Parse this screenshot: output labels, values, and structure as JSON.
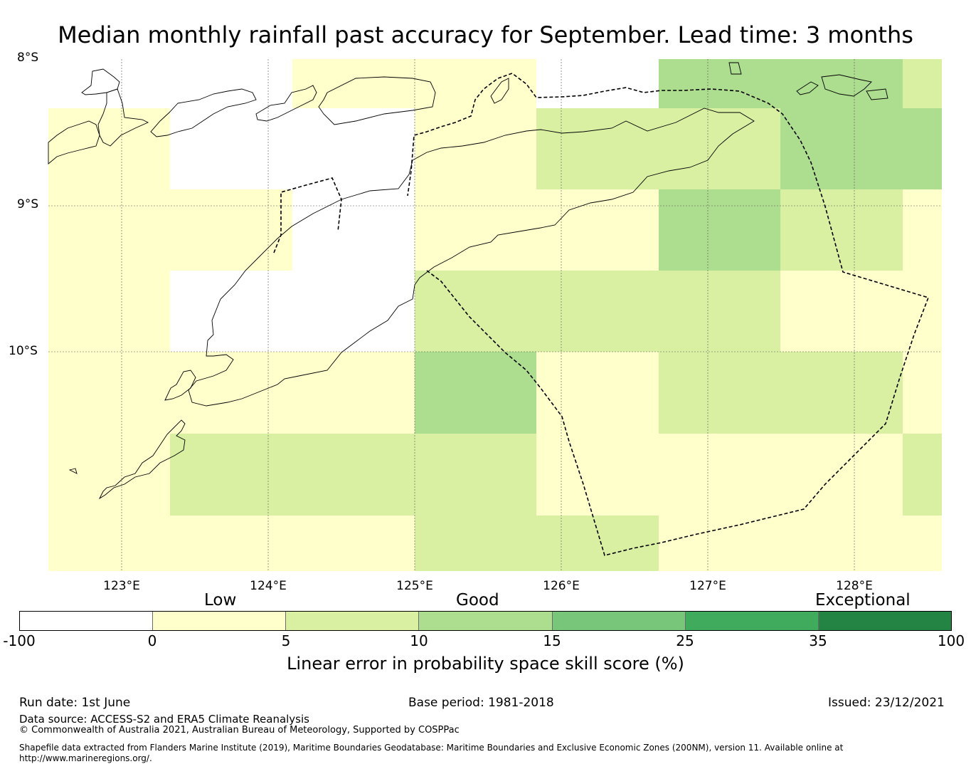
{
  "title": "Median monthly rainfall past accuracy for September. Lead time: 3 months",
  "map": {
    "lat_labels": [
      "8°S",
      "9°S",
      "10°S"
    ],
    "lon_labels": [
      "123°E",
      "124°E",
      "125°E",
      "126°E",
      "127°E",
      "128°E"
    ],
    "lon_range": [
      122.5,
      128.6
    ],
    "lat_range": [
      -8.0,
      -11.5
    ],
    "grid_cell_colors": [
      "#ffffff",
      "#ffffcc",
      "#d9f0a3",
      "#addd8e",
      "#78c679",
      "#41ab5d",
      "#238443"
    ]
  },
  "colorbar": {
    "quality_labels": [
      "Low",
      "Good",
      "Exceptional"
    ],
    "ticks": [
      "-100",
      "0",
      "5",
      "10",
      "15",
      "25",
      "35",
      "100"
    ],
    "colors": [
      "#ffffff",
      "#ffffcc",
      "#d9f0a3",
      "#addd8e",
      "#78c679",
      "#41ab5d",
      "#238443"
    ],
    "label": "Linear error in probability space skill score (%)"
  },
  "footer": {
    "run_date": "Run date: 1st June",
    "base_period": "Base period: 1981-2018",
    "issued": "Issued: 23/12/2021",
    "data_source": "Data source: ACCESS-S2 and ERA5 Climate Reanalysis",
    "copyright": "© Commonwealth of Australia 2021, Australian Bureau of Meteorology, Supported by COSPPac",
    "shapefile_line1": "Shapefile data extracted from Flanders Marine Institute (2019), Maritime Boundaries Geodatabase: Maritime Boundaries and Exclusive Economic Zones (200NM), version 11. Available online at",
    "shapefile_line2": "http://www.marineregions.org/."
  }
}
